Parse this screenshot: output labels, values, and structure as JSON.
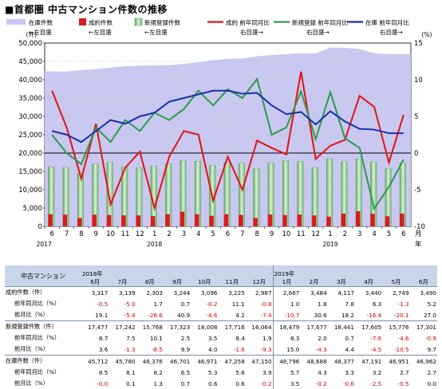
{
  "title": "■首都圏 中古マンション件数の推移",
  "chart_data": {
    "type": "bar",
    "categories": [
      "6",
      "7",
      "8",
      "9",
      "10",
      "11",
      "12",
      "1",
      "2",
      "3",
      "4",
      "5",
      "6",
      "7",
      "8",
      "9",
      "10",
      "11",
      "12",
      "1",
      "2",
      "3",
      "4",
      "5",
      "6"
    ],
    "x_years": [
      {
        "label": "2017",
        "at": 0
      },
      {
        "label": "2018",
        "at": 7
      },
      {
        "label": "2019",
        "at": 19
      }
    ],
    "x_unit": [
      "月",
      "年"
    ],
    "left_axis": {
      "unit": "(件)",
      "ylim": [
        0,
        50000
      ],
      "ticks": [
        "0",
        "5,000",
        "10,000",
        "15,000",
        "20,000",
        "25,000",
        "30,000",
        "35,000",
        "40,000",
        "45,000",
        "50,000"
      ]
    },
    "right_axis": {
      "unit": "(%)",
      "ylim": [
        -10,
        15
      ],
      "ticks": [
        "-10",
        "-5",
        "0",
        "5",
        "10",
        "15"
      ]
    },
    "legend": [
      {
        "name": "在庫件数",
        "axis": "←左目盛",
        "color": "#c8c8f0",
        "kind": "area"
      },
      {
        "name": "成約件数",
        "axis": "←左目盛",
        "color": "#d91c1c",
        "kind": "bar"
      },
      {
        "name": "新規登録件数",
        "axis": "←左目盛",
        "color": "#8fc68f",
        "kind": "bar"
      },
      {
        "name": "成約 前年同月比",
        "axis": "右目盛→",
        "color": "#e31212",
        "kind": "line"
      },
      {
        "name": "新規登録 前年同月比",
        "axis": "右目盛→",
        "color": "#2e9a4c",
        "kind": "line"
      },
      {
        "name": "在庫 前年同月比",
        "axis": "右目盛→",
        "color": "#1b2fa8",
        "kind": "line"
      }
    ],
    "series": [
      {
        "name": "在庫件数",
        "values": [
          42300,
          42200,
          42600,
          42900,
          43300,
          43700,
          43800,
          43900,
          44000,
          44300,
          44800,
          45300,
          45712,
          45780,
          46376,
          46701,
          46971,
          47258,
          47150,
          48796,
          48688,
          48377,
          47191,
          46951,
          46962
        ]
      },
      {
        "name": "成約件数",
        "values": [
          3300,
          3200,
          2300,
          3200,
          3100,
          3000,
          3000,
          2800,
          3300,
          4000,
          3300,
          2900,
          3317,
          3139,
          2303,
          3244,
          3096,
          3225,
          2987,
          2667,
          3484,
          4117,
          3440,
          2749,
          3490
        ]
      },
      {
        "name": "新規登録件数",
        "values": [
          16200,
          16100,
          14500,
          17000,
          17500,
          16300,
          16000,
          16500,
          17000,
          18000,
          17800,
          16600,
          17477,
          17242,
          15768,
          17323,
          18008,
          17716,
          16064,
          18479,
          17677,
          18441,
          17605,
          15776,
          17301
        ]
      },
      {
        "name": "成約 前年同月比",
        "values": [
          8.5,
          3.5,
          -3.5,
          4.0,
          -7.0,
          -2.0,
          0.2,
          -7.5,
          -0.5,
          3.0,
          2.5,
          -6.5,
          -0.5,
          -5.0,
          1.7,
          0.7,
          -0.2,
          11.1,
          -0.8,
          1.0,
          1.8,
          7.8,
          6.3,
          -1.3,
          5.2
        ]
      },
      {
        "name": "新規登録 前年同月比",
        "values": [
          2.5,
          0.0,
          -1.5,
          3.5,
          1.5,
          4.5,
          3.0,
          5.5,
          4.5,
          6.0,
          8.5,
          6.5,
          8.7,
          7.5,
          10.1,
          2.5,
          3.5,
          8.4,
          1.9,
          8.3,
          2.0,
          0.7,
          -7.6,
          -4.6,
          -0.9
        ]
      },
      {
        "name": "在庫 前年同月比",
        "values": [
          3.0,
          2.5,
          1.5,
          3.0,
          4.5,
          4.0,
          5.0,
          5.5,
          7.0,
          7.5,
          8.0,
          8.5,
          8.5,
          8.1,
          8.2,
          6.5,
          5.3,
          5.6,
          3.9,
          5.7,
          4.3,
          3.3,
          3.2,
          2.7,
          2.7
        ]
      }
    ],
    "grid": true
  },
  "table": {
    "corner": "中古マンション",
    "groups": [
      {
        "year": "2018年",
        "months": [
          "6月",
          "7月",
          "8月",
          "9月",
          "10月",
          "11月",
          "12月"
        ]
      },
      {
        "year": "2019年",
        "months": [
          "1月",
          "2月",
          "3月",
          "4月",
          "5月",
          "6月"
        ]
      }
    ],
    "rows": [
      {
        "label": "成約件数（件）",
        "main": true,
        "cells": [
          "3,317",
          "3,139",
          "2,303",
          "3,244",
          "3,096",
          "3,225",
          "2,987",
          "2,667",
          "3,484",
          "4,117",
          "3,440",
          "2,749",
          "3,490"
        ]
      },
      {
        "label": "前年同月比（%）",
        "cells": [
          "-0.5",
          "-5.0",
          "1.7",
          "0.7",
          "-0.2",
          "11.1",
          "-0.8",
          "1.0",
          "1.8",
          "7.8",
          "6.3",
          "-1.3",
          "5.2"
        ]
      },
      {
        "label": "前月比（%）",
        "cells": [
          "19.1",
          "-5.4",
          "-26.6",
          "40.9",
          "-4.6",
          "4.2",
          "-7.4",
          "-10.7",
          "30.6",
          "18.2",
          "-16.4",
          "-20.1",
          "27.0"
        ]
      },
      {
        "label": "新規登録件数（件）",
        "main": true,
        "cells": [
          "17,477",
          "17,242",
          "15,768",
          "17,323",
          "18,008",
          "17,716",
          "16,064",
          "18,479",
          "17,677",
          "18,441",
          "17,605",
          "15,776",
          "17,301"
        ]
      },
      {
        "label": "前年同月比（%）",
        "cells": [
          "8.7",
          "7.5",
          "10.1",
          "2.5",
          "3.5",
          "8.4",
          "1.9",
          "8.3",
          "2.0",
          "0.7",
          "-7.6",
          "-4.6",
          "-0.9"
        ]
      },
      {
        "label": "前月比（%）",
        "cells": [
          "3.6",
          "-1.3",
          "-8.5",
          "9.9",
          "4.0",
          "-1.6",
          "-9.3",
          "15.0",
          "-4.3",
          "4.4",
          "-4.5",
          "-10.5",
          "9.7"
        ]
      },
      {
        "label": "在庫件数（件）",
        "main": true,
        "cells": [
          "45,712",
          "45,780",
          "46,376",
          "46,701",
          "46,971",
          "47,258",
          "47,150",
          "48,796",
          "48,688",
          "48,377",
          "47,191",
          "46,951",
          "46,962"
        ]
      },
      {
        "label": "前年同月比（%）",
        "cells": [
          "8.5",
          "8.1",
          "8.2",
          "6.5",
          "5.3",
          "5.6",
          "3.9",
          "5.7",
          "4.3",
          "3.3",
          "3.2",
          "2.7",
          "2.7"
        ]
      },
      {
        "label": "前月比（%）",
        "cells": [
          "-0.0",
          "0.1",
          "1.3",
          "0.7",
          "0.6",
          "0.6",
          "-0.2",
          "3.5",
          "-0.2",
          "-0.6",
          "-2.5",
          "-0.5",
          "0.0"
        ]
      }
    ]
  }
}
